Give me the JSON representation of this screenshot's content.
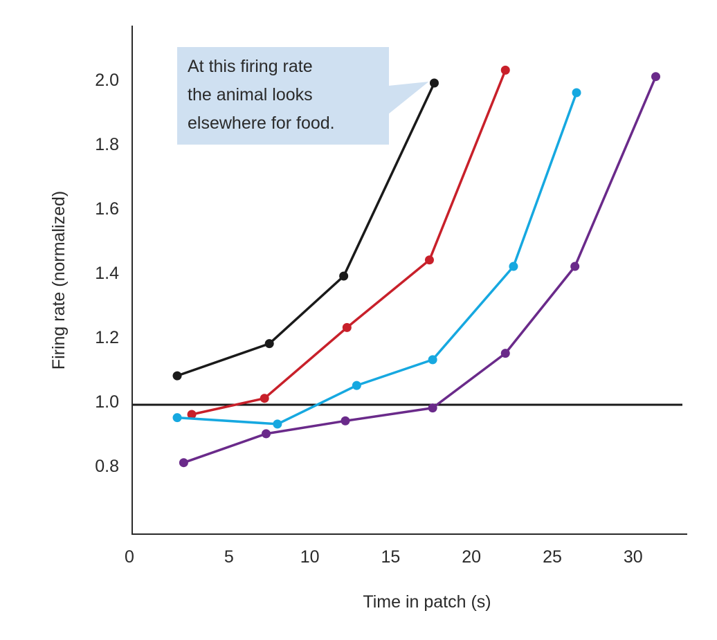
{
  "chart_data": {
    "type": "line",
    "title": "",
    "xlabel": "Time in patch (s)",
    "ylabel": "Firing rate (normalized)",
    "xlim": [
      -1,
      33
    ],
    "ylim": [
      0.6,
      2.15
    ],
    "xticks": [
      0,
      5,
      10,
      15,
      20,
      25,
      30
    ],
    "xtick_labels": [
      "0",
      "5",
      "10",
      "15",
      "20",
      "25",
      "30"
    ],
    "yticks": [
      0.8,
      1.0,
      1.2,
      1.4,
      1.6,
      1.8,
      2.0
    ],
    "ytick_labels": [
      "0.8",
      "1.0",
      "1.2",
      "1.4",
      "1.6",
      "1.8",
      "2.0"
    ],
    "grid": false,
    "legend": null,
    "reference_line": {
      "y": 1.0,
      "color": "#1a1a1a"
    },
    "series": [
      {
        "name": "black",
        "color": "#1a1a1a",
        "x": [
          1.8,
          7.5,
          12.1,
          17.7
        ],
        "y": [
          1.09,
          1.19,
          1.4,
          2.0
        ]
      },
      {
        "name": "red",
        "color": "#c8202a",
        "x": [
          2.7,
          7.2,
          12.3,
          17.4,
          22.1
        ],
        "y": [
          0.97,
          1.02,
          1.24,
          1.45,
          2.04
        ]
      },
      {
        "name": "cyan",
        "color": "#16a8e0",
        "x": [
          1.8,
          8.0,
          12.9,
          17.6,
          22.6,
          26.5
        ],
        "y": [
          0.96,
          0.94,
          1.06,
          1.14,
          1.43,
          1.97
        ]
      },
      {
        "name": "purple",
        "color": "#6a2a8a",
        "x": [
          2.2,
          7.3,
          12.2,
          17.6,
          22.1,
          26.4,
          31.4
        ],
        "y": [
          0.82,
          0.91,
          0.95,
          0.99,
          1.16,
          1.43,
          2.02
        ]
      }
    ],
    "annotations": [
      {
        "lines": [
          "At this firing rate",
          "the animal looks",
          "elsewhere for food."
        ],
        "points_to": {
          "series": "black",
          "x": 17.7,
          "y": 2.0
        },
        "background": "#cfe0f1"
      }
    ]
  }
}
